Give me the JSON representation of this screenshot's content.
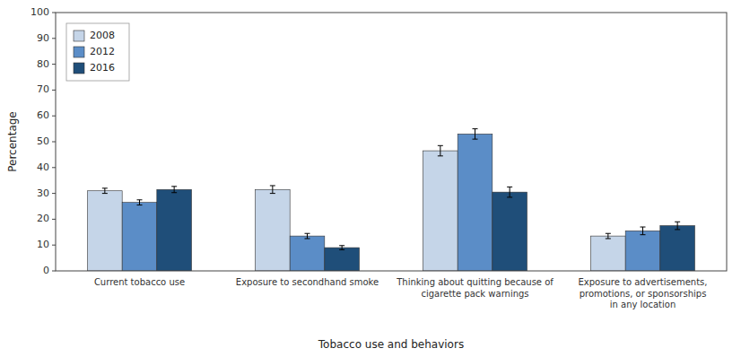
{
  "chart_data": {
    "type": "bar",
    "categories": [
      "Current tobacco use",
      "Exposure to secondhand smoke",
      "Thinking about quitting because of\ncigarette pack warnings",
      "Exposure to advertisements,\npromotions, or sponsorships\nin any location"
    ],
    "series": [
      {
        "name": "2008",
        "color": "#c5d5e8",
        "values": [
          31.0,
          31.5,
          46.5,
          13.5
        ],
        "errors": [
          1.0,
          1.5,
          2.0,
          1.0
        ]
      },
      {
        "name": "2012",
        "color": "#5b8dc7",
        "values": [
          26.5,
          13.5,
          53.0,
          15.5
        ],
        "errors": [
          1.0,
          1.0,
          2.0,
          1.5
        ]
      },
      {
        "name": "2016",
        "color": "#1f4e79",
        "values": [
          31.5,
          9.0,
          30.5,
          17.5
        ],
        "errors": [
          1.2,
          0.8,
          2.0,
          1.5
        ]
      }
    ],
    "xlabel": "Tobacco use and behaviors",
    "ylabel": "Percentage",
    "ylim": [
      0,
      100
    ],
    "yticks": [
      0,
      10,
      20,
      30,
      40,
      50,
      60,
      70,
      80,
      90,
      100
    ],
    "grid": false,
    "legend": "upper left"
  }
}
